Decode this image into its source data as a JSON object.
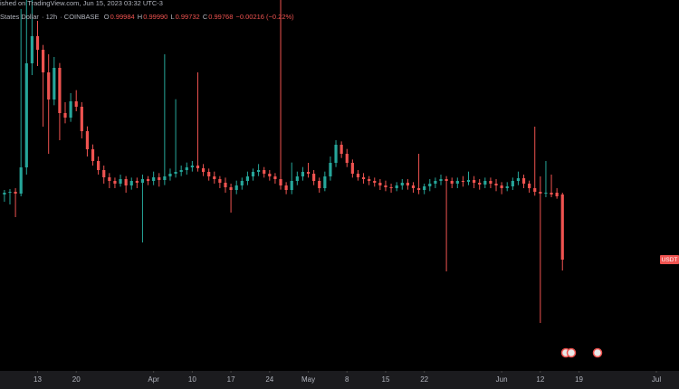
{
  "header": {
    "published": "ished on TradingView.com, Jun 15, 2023 03:32 UTC-3",
    "symbol": "States Dollar",
    "interval": "12h",
    "exchange": "COINBASE",
    "ohlc_letters": [
      "O",
      "H",
      "L",
      "C"
    ],
    "ohlc_value_labels": [
      "0.99984",
      "0.99990",
      "0.99732",
      "0.99768"
    ],
    "change": "−0.00216 (−0.22%)"
  },
  "chart_data": {
    "type": "candlestick",
    "symbol_label": "USDT",
    "up_color": "#26a69a",
    "down_color": "#ef5350",
    "grid": false,
    "xlim": [
      -0.8,
      118
    ],
    "ylim": [
      0.99399,
      1.00629
    ],
    "xticks": [
      {
        "value": 6,
        "label": "13"
      },
      {
        "value": 13,
        "label": "20"
      },
      {
        "value": 27,
        "label": "Apr"
      },
      {
        "value": 34,
        "label": "10"
      },
      {
        "value": 41,
        "label": "17"
      },
      {
        "value": 48,
        "label": "24"
      },
      {
        "value": 55,
        "label": "May"
      },
      {
        "value": 62,
        "label": "8"
      },
      {
        "value": 69,
        "label": "15"
      },
      {
        "value": 76,
        "label": "22"
      },
      {
        "value": 90,
        "label": "Jun"
      },
      {
        "value": 97,
        "label": "12"
      },
      {
        "value": 104,
        "label": "19"
      },
      {
        "value": 118,
        "label": "Jul"
      }
    ],
    "candles": [
      [
        0.99984,
        0.99999,
        0.9996,
        0.9999
      ],
      [
        0.9999,
        1.00002,
        0.99951,
        0.99993
      ],
      [
        0.99993,
        1.00005,
        0.99909,
        0.99987
      ],
      [
        0.99987,
        1.00599,
        0.99978,
        1.00074
      ],
      [
        1.00074,
        1.00629,
        1.0005,
        1.00419
      ],
      [
        1.00419,
        1.00629,
        1.0038,
        1.00509
      ],
      [
        1.00509,
        1.0056,
        1.0041,
        1.00464
      ],
      [
        1.00464,
        1.0048,
        1.00209,
        1.00389
      ],
      [
        1.00389,
        1.00449,
        1.00119,
        1.00299
      ],
      [
        1.00299,
        1.0044,
        1.0028,
        1.00404
      ],
      [
        1.00404,
        1.0042,
        1.00164,
        1.00254
      ],
      [
        1.00254,
        1.0029,
        1.0022,
        1.00239
      ],
      [
        1.00239,
        1.0032,
        1.00225,
        1.00293
      ],
      [
        1.00293,
        1.0033,
        1.0026,
        1.00275
      ],
      [
        1.00275,
        1.0029,
        1.0017,
        1.00194
      ],
      [
        1.00194,
        1.0021,
        1.0011,
        1.00134
      ],
      [
        1.00134,
        1.0015,
        1.0008,
        1.00095
      ],
      [
        1.00095,
        1.0011,
        1.0005,
        1.00065
      ],
      [
        1.00065,
        1.0008,
        1.0002,
        1.00041
      ],
      [
        1.00041,
        1.00055,
        1.00005,
        1.00029
      ],
      [
        1.00029,
        1.0004,
        1.00005,
        1.0002
      ],
      [
        1.0002,
        1.0005,
        1.0001,
        1.00035
      ],
      [
        1.00035,
        1.00045,
        0.9999,
        1.00014
      ],
      [
        1.00014,
        1.0004,
        1.0,
        1.00029
      ],
      [
        1.00029,
        1.0004,
        1.00005,
        1.00023
      ],
      [
        1.00023,
        1.0005,
        0.99825,
        1.00035
      ],
      [
        1.00035,
        1.00045,
        1.00015,
        1.00029
      ],
      [
        1.00029,
        1.0006,
        1.00015,
        1.00041
      ],
      [
        1.00041,
        1.00055,
        1.0001,
        1.00032
      ],
      [
        1.00032,
        1.00449,
        1.00015,
        1.00044
      ],
      [
        1.00044,
        1.0007,
        1.0003,
        1.00053
      ],
      [
        1.00053,
        1.003,
        1.0004,
        1.00059
      ],
      [
        1.00059,
        1.0008,
        1.00045,
        1.00065
      ],
      [
        1.00065,
        1.0009,
        1.0005,
        1.00074
      ],
      [
        1.00074,
        1.00095,
        1.0006,
        1.0008
      ],
      [
        1.0008,
        1.00389,
        1.0006,
        1.00071
      ],
      [
        1.00071,
        1.00085,
        1.00045,
        1.00059
      ],
      [
        1.00059,
        1.0007,
        1.0003,
        1.00044
      ],
      [
        1.00044,
        1.0006,
        1.0002,
        1.00035
      ],
      [
        1.00035,
        1.00045,
        1.00005,
        1.00023
      ],
      [
        1.00023,
        1.0004,
        0.9999,
        1.00008
      ],
      [
        1.00008,
        1.0002,
        0.99924,
        0.99999
      ],
      [
        0.99999,
        1.0003,
        0.99985,
        1.00014
      ],
      [
        1.00014,
        1.0004,
        1.0,
        1.00029
      ],
      [
        1.00029,
        1.0006,
        1.00015,
        1.00044
      ],
      [
        1.00044,
        1.0007,
        1.0003,
        1.00059
      ],
      [
        1.00059,
        1.00085,
        1.00045,
        1.00065
      ],
      [
        1.00065,
        1.00075,
        1.0004,
        1.00053
      ],
      [
        1.00053,
        1.00065,
        1.0003,
        1.00044
      ],
      [
        1.00044,
        1.00055,
        1.0002,
        1.00035
      ],
      [
        1.00035,
        1.00629,
        1.0,
        1.00014
      ],
      [
        1.00014,
        1.00025,
        0.99985,
        0.99999
      ],
      [
        0.99999,
        1.0009,
        0.99985,
        1.00029
      ],
      [
        1.00029,
        1.0006,
        1.00015,
        1.00044
      ],
      [
        1.00044,
        1.00075,
        1.0003,
        1.00059
      ],
      [
        1.00059,
        1.00089,
        1.0004,
        1.00053
      ],
      [
        1.00053,
        1.00065,
        1.00015,
        1.00029
      ],
      [
        1.00029,
        1.0004,
        0.9999,
        1.00005
      ],
      [
        1.00005,
        1.0006,
        0.99995,
        1.00044
      ],
      [
        1.00044,
        1.0011,
        1.0003,
        1.00089
      ],
      [
        1.00089,
        1.00164,
        1.00075,
        1.00149
      ],
      [
        1.00149,
        1.0016,
        1.00105,
        1.00119
      ],
      [
        1.00119,
        1.00135,
        1.00075,
        1.00089
      ],
      [
        1.00089,
        1.001,
        1.0004,
        1.00053
      ],
      [
        1.00053,
        1.00065,
        1.0003,
        1.00041
      ],
      [
        1.00041,
        1.00055,
        1.0002,
        1.00035
      ],
      [
        1.00035,
        1.00045,
        1.00015,
        1.00029
      ],
      [
        1.00029,
        1.0004,
        1.0001,
        1.00023
      ],
      [
        1.00023,
        1.00035,
        0.99999,
        1.00014
      ],
      [
        1.00014,
        1.0003,
        0.99995,
        1.00008
      ],
      [
        1.00008,
        1.0002,
        0.9999,
        1.00005
      ],
      [
        1.00005,
        1.00025,
        0.99995,
        1.00014
      ],
      [
        1.00014,
        1.00035,
        1.0,
        1.00023
      ],
      [
        1.00023,
        1.00035,
        1.0,
        1.00014
      ],
      [
        1.00014,
        1.00025,
        0.9999,
        1.00005
      ],
      [
        1.00005,
        1.00119,
        0.99985,
        0.99999
      ],
      [
        0.99999,
        1.0002,
        0.99985,
        1.00011
      ],
      [
        1.00011,
        1.00035,
        0.99995,
        1.0002
      ],
      [
        1.0002,
        1.0004,
        1.00005,
        1.00029
      ],
      [
        1.00029,
        1.0005,
        1.00015,
        1.00035
      ],
      [
        1.00035,
        1.00045,
        0.99729,
        1.00029
      ],
      [
        1.00029,
        1.0004,
        1.00005,
        1.0002
      ],
      [
        1.0002,
        1.0004,
        1.00005,
        1.00029
      ],
      [
        1.00029,
        1.00045,
        1.0001,
        1.00026
      ],
      [
        1.00026,
        1.0006,
        1.00015,
        1.00032
      ],
      [
        1.00032,
        1.00045,
        1.00005,
        1.00023
      ],
      [
        1.00023,
        1.00035,
        1.0,
        1.00017
      ],
      [
        1.00017,
        1.0004,
        1.00005,
        1.00029
      ],
      [
        1.00029,
        1.0004,
        1.00005,
        1.0002
      ],
      [
        1.0002,
        1.00035,
        0.99995,
        1.00014
      ],
      [
        1.00014,
        1.00025,
        0.99985,
        1.00005
      ],
      [
        1.00005,
        1.00025,
        0.99995,
        1.00011
      ],
      [
        1.00011,
        1.0004,
        0.99999,
        1.00029
      ],
      [
        1.00029,
        1.0006,
        1.00015,
        1.00038
      ],
      [
        1.00038,
        1.0005,
        1.00005,
        1.0002
      ],
      [
        1.0002,
        1.0003,
        0.9999,
        1.00005
      ],
      [
        1.00005,
        1.00209,
        0.9998,
        0.99993
      ],
      [
        0.99993,
        1.00044,
        0.99558,
        0.99987
      ],
      [
        0.99987,
        1.00095,
        0.99975,
        0.9999
      ],
      [
        0.9999,
        1.0005,
        0.99975,
        0.99984
      ],
      [
        0.9999,
        1.00005,
        0.9997,
        0.99978
      ],
      [
        0.99984,
        0.9999,
        0.99732,
        0.99768
      ]
    ]
  }
}
